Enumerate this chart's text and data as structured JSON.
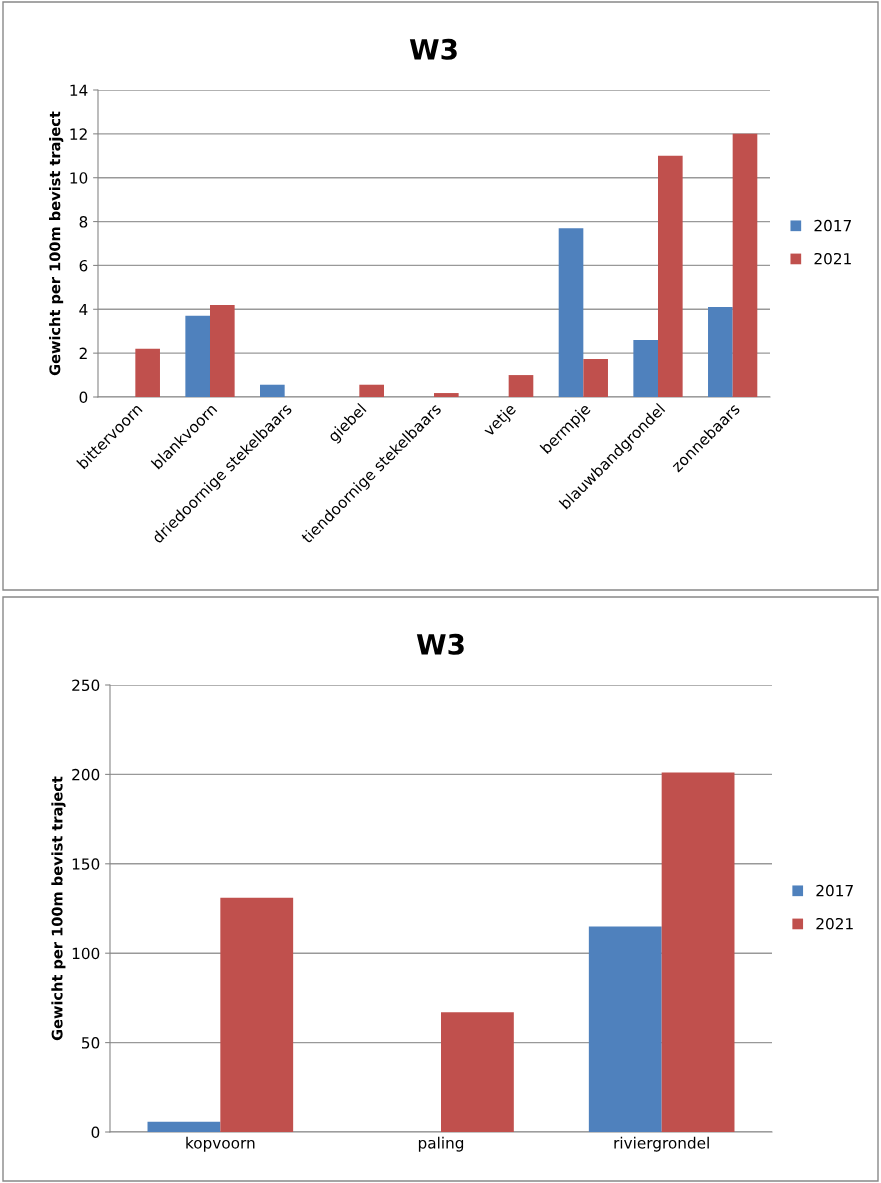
{
  "chart_data": [
    {
      "type": "bar",
      "title": "W3",
      "ylabel": "Gewicht per 100m bevist traject",
      "categories": [
        "bittervoorn",
        "blankvoorn",
        "driedoornige stekelbaars",
        "giebel",
        "tiendoornige stekelbaars",
        "vetje",
        "bermpje",
        "blauwbandgrondel",
        "zonnebaars"
      ],
      "series": [
        {
          "name": "2017",
          "color": "#4f81bd",
          "values": [
            null,
            3.7,
            0.56,
            null,
            null,
            null,
            7.7,
            2.6,
            4.1
          ]
        },
        {
          "name": "2021",
          "color": "#c0504d",
          "values": [
            2.2,
            4.2,
            null,
            0.56,
            0.18,
            1.0,
            1.73,
            11.0,
            12.0
          ]
        }
      ],
      "ylim": [
        0,
        14
      ],
      "yticks": [
        0,
        2,
        4,
        6,
        8,
        10,
        12,
        14
      ],
      "grid": "y",
      "legend": "right"
    },
    {
      "type": "bar",
      "title": "W3",
      "ylabel": "Gewicht per 100m bevist traject",
      "categories": [
        "kopvoorn",
        "paling",
        "riviergrondel"
      ],
      "series": [
        {
          "name": "2017",
          "color": "#4f81bd",
          "values": [
            5.7,
            null,
            115
          ]
        },
        {
          "name": "2021",
          "color": "#c0504d",
          "values": [
            131,
            67,
            201
          ]
        }
      ],
      "ylim": [
        0,
        250
      ],
      "yticks": [
        0,
        50,
        100,
        150,
        200,
        250
      ],
      "grid": "y",
      "legend": "right"
    }
  ]
}
